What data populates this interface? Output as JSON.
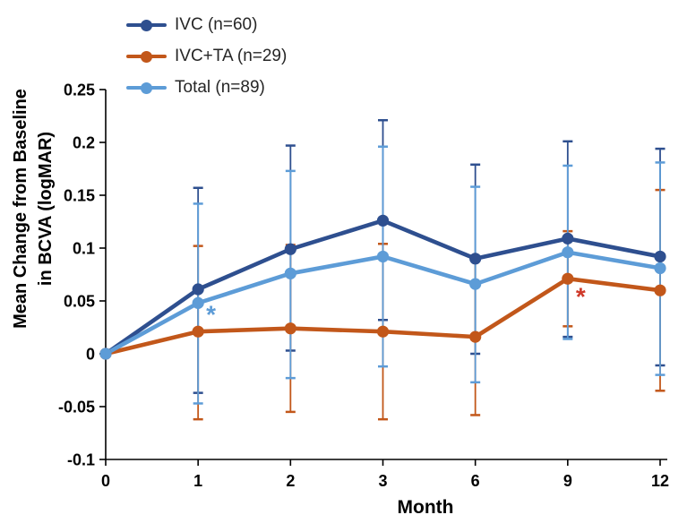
{
  "chart_data": {
    "type": "line",
    "xlabel": "Month",
    "ylabel_lines": [
      "Mean Change from Baseline",
      "in BCVA (logMAR)"
    ],
    "categories": [
      "0",
      "1",
      "2",
      "3",
      "6",
      "9",
      "12"
    ],
    "x_tick_labels": [
      "0",
      "1",
      "2",
      "3",
      "6",
      "9",
      "12"
    ],
    "y_tick_labels": [
      "0.25",
      "0.2",
      "0.15",
      "0.1",
      "0.05",
      "0",
      "-0.05",
      "-0.1"
    ],
    "y_tick_values": [
      0.25,
      0.2,
      0.15,
      0.1,
      0.05,
      0,
      -0.05,
      -0.1
    ],
    "ylim": [
      -0.1,
      0.25
    ],
    "grid": false,
    "legend_position": "top-left",
    "axis_color": "#000000",
    "series": [
      {
        "name": "IVC",
        "legend_label": "IVC (n=60)",
        "n": 60,
        "color": "#2E4F8F",
        "values": [
          0,
          0.061,
          0.099,
          0.126,
          0.09,
          0.109,
          0.092
        ],
        "error_upper": [
          null,
          0.157,
          0.197,
          0.221,
          0.179,
          0.201,
          0.194
        ],
        "error_lower": [
          null,
          -0.037,
          0.003,
          0.032,
          0.0,
          0.016,
          -0.011
        ]
      },
      {
        "name": "IVC+TA",
        "legend_label": "IVC+TA (n=29)",
        "n": 29,
        "color": "#C2571A",
        "values": [
          0,
          0.021,
          0.024,
          0.021,
          0.016,
          0.071,
          0.06
        ],
        "error_upper": [
          null,
          0.102,
          0.103,
          0.104,
          0.09,
          0.116,
          0.155
        ],
        "error_lower": [
          null,
          -0.062,
          -0.055,
          -0.062,
          -0.058,
          0.026,
          -0.035
        ]
      },
      {
        "name": "Total",
        "legend_label": "Total (n=89)",
        "n": 89,
        "color": "#5D9CD7",
        "values": [
          0,
          0.048,
          0.076,
          0.092,
          0.066,
          0.096,
          0.081
        ],
        "error_upper": [
          null,
          0.142,
          0.173,
          0.196,
          0.158,
          0.178,
          0.181
        ],
        "error_lower": [
          null,
          -0.047,
          -0.023,
          -0.012,
          -0.027,
          0.014,
          -0.02
        ]
      }
    ],
    "annotations": [
      {
        "text": "*",
        "color": "#5D9CD7",
        "x_index": 1,
        "value": 0.041
      },
      {
        "text": "*",
        "color": "#CF3A2A",
        "x_index": 5,
        "value": 0.058
      }
    ]
  }
}
